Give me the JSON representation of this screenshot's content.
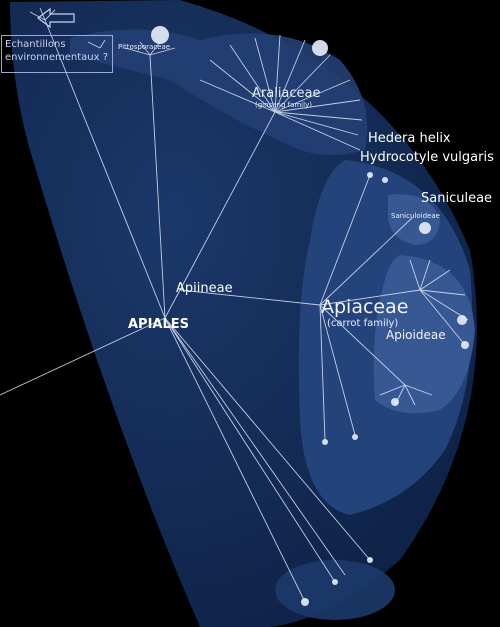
{
  "colors": {
    "background": "#000000",
    "outer_region": "#10244a",
    "mid_region": "#1a3566",
    "inner_region": "#2a4a82",
    "branch": "#dfe8ff",
    "label": "#ffffff"
  },
  "annotation": {
    "line1": "Echantillons",
    "line2": "environnementaux ?"
  },
  "labels": {
    "pittosporaceae": "Pittosporaceae",
    "araliaceae": "Araliaceae",
    "araliaceae_sub": "(ginseng family)",
    "hedera": "Hedera helix",
    "hydrocotyle": "Hydrocotyle vulgaris",
    "saniculeae": "Saniculeae",
    "saniculoideae": "Saniculoideae",
    "apiineae": "Apiineae",
    "apiaceae": "Apiaceae",
    "apiaceae_sub": "(carrot family)",
    "apioideae": "Apioideae",
    "apiales": "APIALES"
  }
}
